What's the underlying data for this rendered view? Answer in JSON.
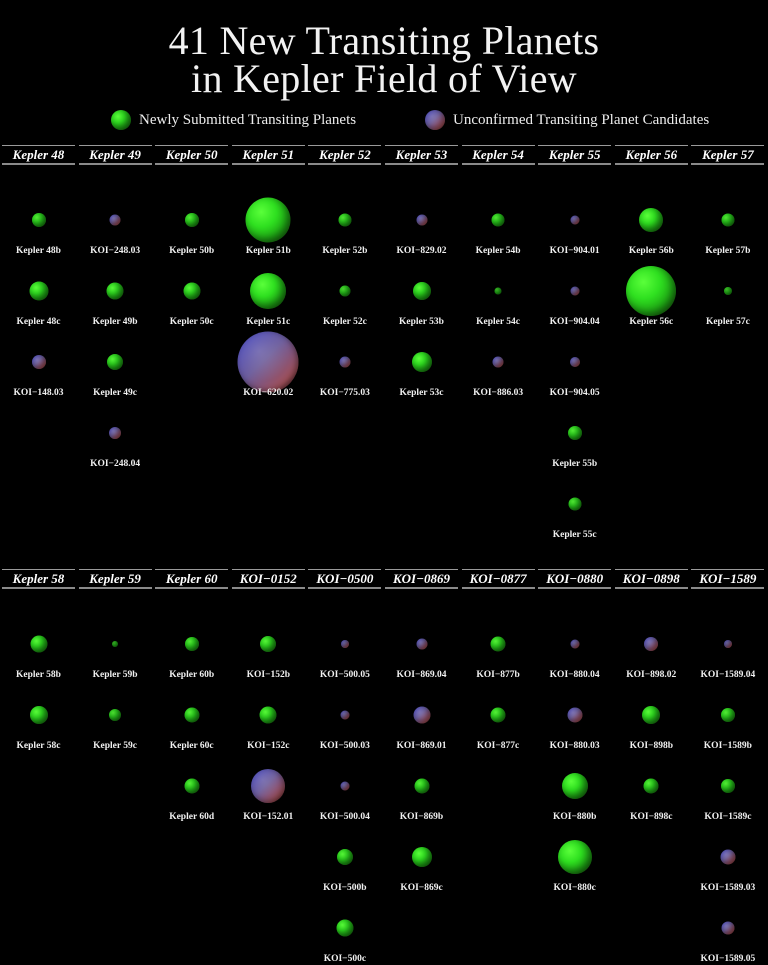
{
  "title": {
    "line1": "41 New Transiting Planets",
    "line2": "in Kepler Field of View"
  },
  "legend": [
    {
      "label": "Newly Submitted Transiting Planets",
      "type": "confirmed",
      "color": "#2fe020"
    },
    {
      "label": "Unconfirmed Transiting Planet Candidates",
      "type": "candidate",
      "color": "#6a5a9a"
    }
  ],
  "colors": {
    "background": "#000000",
    "confirmed": "#2fe020",
    "candidate_blue": "#3b3ec0",
    "candidate_red": "#a0505a"
  },
  "systems_row1": [
    {
      "name": "Kepler 48",
      "planets": [
        {
          "name": "Kepler 48b",
          "type": "confirmed",
          "d": 14
        },
        {
          "name": "Kepler 48c",
          "type": "confirmed",
          "d": 19
        },
        {
          "name": "KOI−148.03",
          "type": "candidate",
          "d": 14
        }
      ]
    },
    {
      "name": "Kepler 49",
      "planets": [
        {
          "name": "KOI−248.03",
          "type": "candidate",
          "d": 11
        },
        {
          "name": "Kepler 49b",
          "type": "confirmed",
          "d": 17
        },
        {
          "name": "Kepler 49c",
          "type": "confirmed",
          "d": 16
        },
        {
          "name": "KOI−248.04",
          "type": "candidate",
          "d": 12
        }
      ]
    },
    {
      "name": "Kepler 50",
      "planets": [
        {
          "name": "Kepler 50b",
          "type": "confirmed",
          "d": 14
        },
        {
          "name": "Kepler 50c",
          "type": "confirmed",
          "d": 17
        }
      ]
    },
    {
      "name": "Kepler 51",
      "planets": [
        {
          "name": "Kepler 51b",
          "type": "confirmed",
          "d": 45
        },
        {
          "name": "Kepler 51c",
          "type": "confirmed",
          "d": 36
        },
        {
          "name": "KOI−620.02",
          "type": "candidate",
          "d": 61
        }
      ]
    },
    {
      "name": "Kepler 52",
      "planets": [
        {
          "name": "Kepler 52b",
          "type": "confirmed",
          "d": 13
        },
        {
          "name": "Kepler 52c",
          "type": "confirmed",
          "d": 11
        },
        {
          "name": "KOI−775.03",
          "type": "candidate",
          "d": 11
        }
      ]
    },
    {
      "name": "Kepler 53",
      "planets": [
        {
          "name": "KOI−829.02",
          "type": "candidate",
          "d": 11
        },
        {
          "name": "Kepler 53b",
          "type": "confirmed",
          "d": 18
        },
        {
          "name": "Kepler 53c",
          "type": "confirmed",
          "d": 20
        }
      ]
    },
    {
      "name": "Kepler 54",
      "planets": [
        {
          "name": "Kepler 54b",
          "type": "confirmed",
          "d": 13
        },
        {
          "name": "Kepler 54c",
          "type": "confirmed",
          "d": 7
        },
        {
          "name": "KOI−886.03",
          "type": "candidate",
          "d": 11
        }
      ]
    },
    {
      "name": "Kepler 55",
      "planets": [
        {
          "name": "KOI−904.01",
          "type": "candidate",
          "d": 9
        },
        {
          "name": "KOI−904.04",
          "type": "candidate",
          "d": 9
        },
        {
          "name": "KOI−904.05",
          "type": "candidate",
          "d": 10
        },
        {
          "name": "Kepler 55b",
          "type": "confirmed",
          "d": 14
        },
        {
          "name": "Kepler 55c",
          "type": "confirmed",
          "d": 13
        }
      ]
    },
    {
      "name": "Kepler 56",
      "planets": [
        {
          "name": "Kepler 56b",
          "type": "confirmed",
          "d": 24
        },
        {
          "name": "Kepler 56c",
          "type": "confirmed",
          "d": 50
        }
      ]
    },
    {
      "name": "Kepler 57",
      "planets": [
        {
          "name": "Kepler 57b",
          "type": "confirmed",
          "d": 13
        },
        {
          "name": "Kepler 57c",
          "type": "confirmed",
          "d": 8
        }
      ]
    }
  ],
  "systems_row2": [
    {
      "name": "Kepler 58",
      "planets": [
        {
          "name": "Kepler 58b",
          "type": "confirmed",
          "d": 17
        },
        {
          "name": "Kepler 58c",
          "type": "confirmed",
          "d": 18
        }
      ]
    },
    {
      "name": "Kepler 59",
      "planets": [
        {
          "name": "Kepler 59b",
          "type": "confirmed",
          "d": 6
        },
        {
          "name": "Kepler 59c",
          "type": "confirmed",
          "d": 12
        }
      ]
    },
    {
      "name": "Kepler 60",
      "planets": [
        {
          "name": "Kepler 60b",
          "type": "confirmed",
          "d": 14
        },
        {
          "name": "Kepler 60c",
          "type": "confirmed",
          "d": 15
        },
        {
          "name": "Kepler 60d",
          "type": "confirmed",
          "d": 15
        }
      ]
    },
    {
      "name": "KOI−0152",
      "planets": [
        {
          "name": "KOI−152b",
          "type": "confirmed",
          "d": 16
        },
        {
          "name": "KOI−152c",
          "type": "confirmed",
          "d": 17
        },
        {
          "name": "KOI−152.01",
          "type": "candidate",
          "d": 34
        }
      ]
    },
    {
      "name": "KOI−0500",
      "planets": [
        {
          "name": "KOI−500.05",
          "type": "candidate",
          "d": 8
        },
        {
          "name": "KOI−500.03",
          "type": "candidate",
          "d": 9
        },
        {
          "name": "KOI−500.04",
          "type": "candidate",
          "d": 9
        },
        {
          "name": "KOI−500b",
          "type": "confirmed",
          "d": 16
        },
        {
          "name": "KOI−500c",
          "type": "confirmed",
          "d": 17
        }
      ]
    },
    {
      "name": "KOI−0869",
      "planets": [
        {
          "name": "KOI−869.04",
          "type": "candidate",
          "d": 11
        },
        {
          "name": "KOI−869.01",
          "type": "candidate",
          "d": 17
        },
        {
          "name": "KOI−869b",
          "type": "confirmed",
          "d": 15
        },
        {
          "name": "KOI−869c",
          "type": "confirmed",
          "d": 20
        }
      ]
    },
    {
      "name": "KOI−0877",
      "planets": [
        {
          "name": "KOI−877b",
          "type": "confirmed",
          "d": 15
        },
        {
          "name": "KOI−877c",
          "type": "confirmed",
          "d": 15
        }
      ]
    },
    {
      "name": "KOI−0880",
      "planets": [
        {
          "name": "KOI−880.04",
          "type": "candidate",
          "d": 9
        },
        {
          "name": "KOI−880.03",
          "type": "candidate",
          "d": 15
        },
        {
          "name": "KOI−880b",
          "type": "confirmed",
          "d": 26
        },
        {
          "name": "KOI−880c",
          "type": "confirmed",
          "d": 34
        }
      ]
    },
    {
      "name": "KOI−0898",
      "planets": [
        {
          "name": "KOI−898.02",
          "type": "candidate",
          "d": 14
        },
        {
          "name": "KOI−898b",
          "type": "confirmed",
          "d": 18
        },
        {
          "name": "KOI−898c",
          "type": "confirmed",
          "d": 15
        }
      ]
    },
    {
      "name": "KOI−1589",
      "planets": [
        {
          "name": "KOI−1589.04",
          "type": "candidate",
          "d": 8
        },
        {
          "name": "KOI−1589b",
          "type": "confirmed",
          "d": 14
        },
        {
          "name": "KOI−1589c",
          "type": "confirmed",
          "d": 14
        },
        {
          "name": "KOI−1589.03",
          "type": "candidate",
          "d": 15
        },
        {
          "name": "KOI−1589.05",
          "type": "candidate",
          "d": 13
        }
      ]
    }
  ]
}
